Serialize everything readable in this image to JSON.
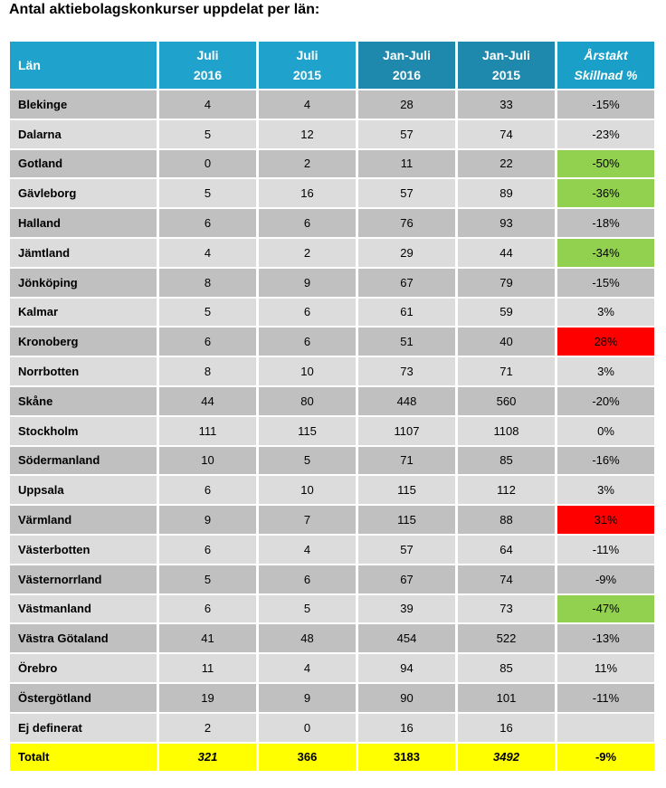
{
  "title": "Antal aktiebolagskonkurser uppdelat per län:",
  "headers": {
    "lan": "Län",
    "col1": [
      "Juli",
      "2016"
    ],
    "col2": [
      "Juli",
      "2015"
    ],
    "col3": [
      "Jan-Juli",
      "2016"
    ],
    "col4": [
      "Jan-Juli",
      "2015"
    ],
    "col5": [
      "Årstakt",
      "Skillnad %"
    ]
  },
  "colors": {
    "header_blue": "#1fa3cc",
    "header_dark_blue": "#1e88ad",
    "row_dark": "#c0c0c0",
    "row_light": "#dcdcdc",
    "decrease_highlight": "#92d050",
    "increase_highlight": "#ff0000",
    "total_row": "#ffff00"
  },
  "rows": [
    {
      "lan": "Blekinge",
      "juli_2016": "4",
      "juli_2015": "4",
      "jan_juli_2016": "28",
      "jan_juli_2015": "33",
      "skillnad": "-15%",
      "highlight": ""
    },
    {
      "lan": "Dalarna",
      "juli_2016": "5",
      "juli_2015": "12",
      "jan_juli_2016": "57",
      "jan_juli_2015": "74",
      "skillnad": "-23%",
      "highlight": ""
    },
    {
      "lan": "Gotland",
      "juli_2016": "0",
      "juli_2015": "2",
      "jan_juli_2016": "11",
      "jan_juli_2015": "22",
      "skillnad": "-50%",
      "highlight": "green"
    },
    {
      "lan": "Gävleborg",
      "juli_2016": "5",
      "juli_2015": "16",
      "jan_juli_2016": "57",
      "jan_juli_2015": "89",
      "skillnad": "-36%",
      "highlight": "green"
    },
    {
      "lan": "Halland",
      "juli_2016": "6",
      "juli_2015": "6",
      "jan_juli_2016": "76",
      "jan_juli_2015": "93",
      "skillnad": "-18%",
      "highlight": ""
    },
    {
      "lan": "Jämtland",
      "juli_2016": "4",
      "juli_2015": "2",
      "jan_juli_2016": "29",
      "jan_juli_2015": "44",
      "skillnad": "-34%",
      "highlight": "green"
    },
    {
      "lan": "Jönköping",
      "juli_2016": "8",
      "juli_2015": "9",
      "jan_juli_2016": "67",
      "jan_juli_2015": "79",
      "skillnad": "-15%",
      "highlight": ""
    },
    {
      "lan": "Kalmar",
      "juli_2016": "5",
      "juli_2015": "6",
      "jan_juli_2016": "61",
      "jan_juli_2015": "59",
      "skillnad": "3%",
      "highlight": ""
    },
    {
      "lan": "Kronoberg",
      "juli_2016": "6",
      "juli_2015": "6",
      "jan_juli_2016": "51",
      "jan_juli_2015": "40",
      "skillnad": "28%",
      "highlight": "red"
    },
    {
      "lan": "Norrbotten",
      "juli_2016": "8",
      "juli_2015": "10",
      "jan_juli_2016": "73",
      "jan_juli_2015": "71",
      "skillnad": "3%",
      "highlight": ""
    },
    {
      "lan": "Skåne",
      "juli_2016": "44",
      "juli_2015": "80",
      "jan_juli_2016": "448",
      "jan_juli_2015": "560",
      "skillnad": "-20%",
      "highlight": ""
    },
    {
      "lan": "Stockholm",
      "juli_2016": "111",
      "juli_2015": "115",
      "jan_juli_2016": "1107",
      "jan_juli_2015": "1108",
      "skillnad": "0%",
      "highlight": ""
    },
    {
      "lan": "Södermanland",
      "juli_2016": "10",
      "juli_2015": "5",
      "jan_juli_2016": "71",
      "jan_juli_2015": "85",
      "skillnad": "-16%",
      "highlight": ""
    },
    {
      "lan": "Uppsala",
      "juli_2016": "6",
      "juli_2015": "10",
      "jan_juli_2016": "115",
      "jan_juli_2015": "112",
      "skillnad": "3%",
      "highlight": ""
    },
    {
      "lan": "Värmland",
      "juli_2016": "9",
      "juli_2015": "7",
      "jan_juli_2016": "115",
      "jan_juli_2015": "88",
      "skillnad": "31%",
      "highlight": "red"
    },
    {
      "lan": "Västerbotten",
      "juli_2016": "6",
      "juli_2015": "4",
      "jan_juli_2016": "57",
      "jan_juli_2015": "64",
      "skillnad": "-11%",
      "highlight": ""
    },
    {
      "lan": "Västernorrland",
      "juli_2016": "5",
      "juli_2015": "6",
      "jan_juli_2016": "67",
      "jan_juli_2015": "74",
      "skillnad": "-9%",
      "highlight": ""
    },
    {
      "lan": "Västmanland",
      "juli_2016": "6",
      "juli_2015": "5",
      "jan_juli_2016": "39",
      "jan_juli_2015": "73",
      "skillnad": "-47%",
      "highlight": "green"
    },
    {
      "lan": "Västra Götaland",
      "juli_2016": "41",
      "juli_2015": "48",
      "jan_juli_2016": "454",
      "jan_juli_2015": "522",
      "skillnad": "-13%",
      "highlight": ""
    },
    {
      "lan": "Örebro",
      "juli_2016": "11",
      "juli_2015": "4",
      "jan_juli_2016": "94",
      "jan_juli_2015": "85",
      "skillnad": "11%",
      "highlight": ""
    },
    {
      "lan": "Östergötland",
      "juli_2016": "19",
      "juli_2015": "9",
      "jan_juli_2016": "90",
      "jan_juli_2015": "101",
      "skillnad": "-11%",
      "highlight": ""
    },
    {
      "lan": "Ej definerat",
      "juli_2016": "2",
      "juli_2015": "0",
      "jan_juli_2016": "16",
      "jan_juli_2015": "16",
      "skillnad": "",
      "highlight": ""
    }
  ],
  "total": {
    "lan": "Totalt",
    "juli_2016": "321",
    "juli_2015": "366",
    "jan_juli_2016": "3183",
    "jan_juli_2015": "3492",
    "skillnad": "-9%"
  }
}
